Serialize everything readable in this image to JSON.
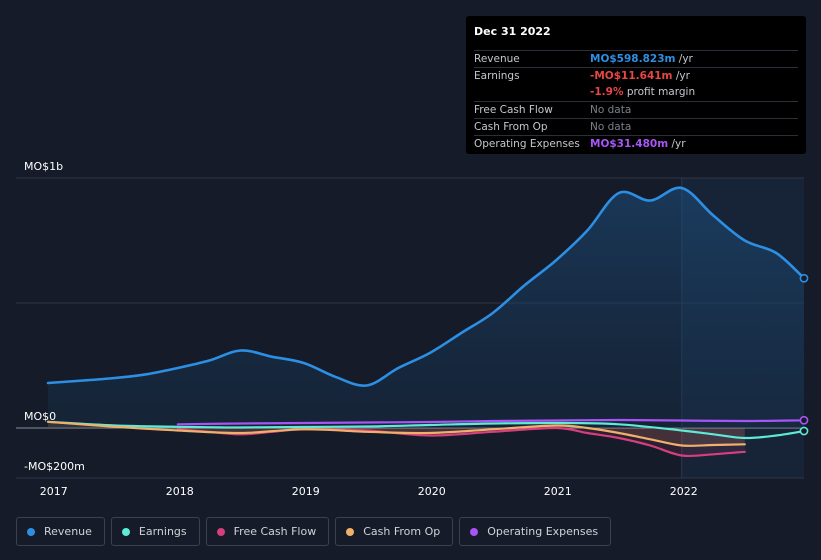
{
  "tooltip": {
    "date": "Dec 31 2022",
    "rows": [
      {
        "label": "Revenue",
        "value": "MO$598.823m",
        "unit": "/yr",
        "color": "#2d8fe3"
      },
      {
        "label": "Earnings",
        "value": "-MO$11.641m",
        "unit": "/yr",
        "color": "#e84545"
      },
      {
        "label": "",
        "value": "-1.9%",
        "unit": "profit margin",
        "color": "#e84545"
      },
      {
        "label": "Free Cash Flow",
        "value": "No data",
        "unit": "",
        "color": "#7b8089"
      },
      {
        "label": "Cash From Op",
        "value": "No data",
        "unit": "",
        "color": "#7b8089"
      },
      {
        "label": "Operating Expenses",
        "value": "MO$31.480m",
        "unit": "/yr",
        "color": "#a855f7"
      }
    ]
  },
  "chart_data": {
    "type": "line",
    "ylabels": {
      "top": "MO$1b",
      "zero": "MO$0",
      "bottom": "-MO$200m"
    },
    "ylim": [
      -200,
      1000
    ],
    "xlim": [
      2016.97,
      2022.97
    ],
    "x_ticks": [
      "2017",
      "2018",
      "2019",
      "2020",
      "2021",
      "2022"
    ],
    "highlight_from": 2022.0,
    "series": [
      {
        "name": "Revenue",
        "color": "#2d8fe3",
        "fill": true,
        "points": [
          [
            2016.97,
            180
          ],
          [
            2017.25,
            190
          ],
          [
            2017.5,
            200
          ],
          [
            2017.75,
            215
          ],
          [
            2018.0,
            240
          ],
          [
            2018.25,
            270
          ],
          [
            2018.5,
            310
          ],
          [
            2018.75,
            285
          ],
          [
            2019.0,
            260
          ],
          [
            2019.25,
            205
          ],
          [
            2019.5,
            170
          ],
          [
            2019.75,
            240
          ],
          [
            2020.0,
            300
          ],
          [
            2020.25,
            380
          ],
          [
            2020.5,
            460
          ],
          [
            2020.75,
            570
          ],
          [
            2021.0,
            670
          ],
          [
            2021.25,
            790
          ],
          [
            2021.5,
            940
          ],
          [
            2021.75,
            910
          ],
          [
            2022.0,
            960
          ],
          [
            2022.25,
            850
          ],
          [
            2022.5,
            750
          ],
          [
            2022.75,
            700
          ],
          [
            2022.97,
            599
          ]
        ]
      },
      {
        "name": "Earnings",
        "color": "#5eead4",
        "fill": false,
        "points": [
          [
            2016.97,
            25
          ],
          [
            2017.5,
            10
          ],
          [
            2018.0,
            5
          ],
          [
            2018.5,
            2
          ],
          [
            2019.0,
            4
          ],
          [
            2019.5,
            6
          ],
          [
            2020.0,
            12
          ],
          [
            2020.5,
            18
          ],
          [
            2021.0,
            20
          ],
          [
            2021.5,
            15
          ],
          [
            2022.0,
            -10
          ],
          [
            2022.25,
            -25
          ],
          [
            2022.5,
            -40
          ],
          [
            2022.75,
            -30
          ],
          [
            2022.97,
            -12
          ]
        ]
      },
      {
        "name": "Free Cash Flow",
        "color": "#d63f7d",
        "fill": false,
        "points": [
          [
            2018.0,
            -5
          ],
          [
            2018.25,
            -15
          ],
          [
            2018.5,
            -25
          ],
          [
            2018.75,
            -15
          ],
          [
            2019.0,
            -5
          ],
          [
            2019.5,
            -10
          ],
          [
            2020.0,
            -30
          ],
          [
            2020.5,
            -15
          ],
          [
            2021.0,
            0
          ],
          [
            2021.25,
            -20
          ],
          [
            2021.5,
            -40
          ],
          [
            2021.75,
            -70
          ],
          [
            2022.0,
            -110
          ],
          [
            2022.25,
            -105
          ],
          [
            2022.5,
            -95
          ]
        ]
      },
      {
        "name": "Cash From Op",
        "color": "#f0b06a",
        "fill": false,
        "points": [
          [
            2016.97,
            25
          ],
          [
            2017.5,
            5
          ],
          [
            2018.0,
            -10
          ],
          [
            2018.5,
            -20
          ],
          [
            2019.0,
            -5
          ],
          [
            2019.5,
            -15
          ],
          [
            2020.0,
            -20
          ],
          [
            2020.5,
            -5
          ],
          [
            2021.0,
            10
          ],
          [
            2021.25,
            0
          ],
          [
            2021.5,
            -20
          ],
          [
            2021.75,
            -45
          ],
          [
            2022.0,
            -70
          ],
          [
            2022.25,
            -68
          ],
          [
            2022.5,
            -65
          ]
        ]
      },
      {
        "name": "Operating Expenses",
        "color": "#a855f7",
        "fill": false,
        "points": [
          [
            2018.0,
            15
          ],
          [
            2018.5,
            18
          ],
          [
            2019.0,
            20
          ],
          [
            2019.5,
            22
          ],
          [
            2020.0,
            24
          ],
          [
            2020.5,
            28
          ],
          [
            2021.0,
            30
          ],
          [
            2021.5,
            32
          ],
          [
            2022.0,
            30
          ],
          [
            2022.5,
            28
          ],
          [
            2022.97,
            31
          ]
        ]
      }
    ]
  },
  "legend": [
    {
      "label": "Revenue",
      "color": "#2d8fe3"
    },
    {
      "label": "Earnings",
      "color": "#5eead4"
    },
    {
      "label": "Free Cash Flow",
      "color": "#d63f7d"
    },
    {
      "label": "Cash From Op",
      "color": "#f0b06a"
    },
    {
      "label": "Operating Expenses",
      "color": "#a855f7"
    }
  ]
}
